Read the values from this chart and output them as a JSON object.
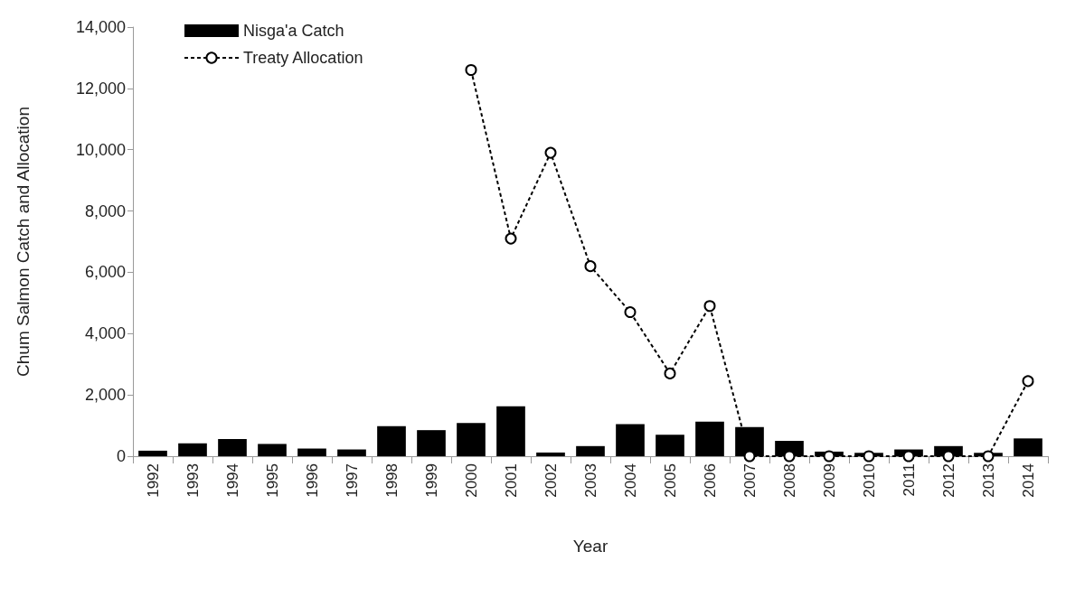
{
  "chart_data": {
    "type": "bar",
    "xlabel": "Year",
    "ylabel": "Chum Salmon Catch and Allocation",
    "categories": [
      "1992",
      "1993",
      "1994",
      "1995",
      "1996",
      "1997",
      "1998",
      "1999",
      "2000",
      "2001",
      "2002",
      "2003",
      "2004",
      "2005",
      "2006",
      "2007",
      "2008",
      "2009",
      "2010",
      "2011",
      "2012",
      "2013",
      "2014"
    ],
    "series": [
      {
        "name": "Nisga'a Catch",
        "color": "#000000",
        "values": [
          180,
          420,
          560,
          400,
          250,
          220,
          980,
          850,
          1080,
          1630,
          120,
          330,
          1050,
          700,
          1130,
          950,
          500,
          150,
          110,
          220,
          330,
          110,
          580
        ]
      },
      {
        "name": "Treaty Allocation",
        "type": "line",
        "color": "#000000",
        "marker": "circle",
        "line_style": "dashed",
        "values": [
          null,
          null,
          null,
          null,
          null,
          null,
          null,
          null,
          12600,
          7100,
          9900,
          6200,
          4700,
          2700,
          4900,
          0,
          0,
          0,
          0,
          0,
          0,
          0,
          2450
        ]
      }
    ],
    "ylim": [
      0,
      14000
    ],
    "yticks": [
      0,
      {
        "value": 2000,
        "label": "2,000"
      },
      {
        "value": 4000,
        "label": "4,000"
      },
      {
        "value": 6000,
        "label": "6,000"
      },
      {
        "value": 8000,
        "label": "8,000"
      },
      {
        "value": 10000,
        "label": "10,000"
      },
      {
        "value": 12000,
        "label": "12,000"
      },
      {
        "value": 14000,
        "label": "14,000"
      }
    ],
    "grid": false,
    "legend": "top left"
  }
}
